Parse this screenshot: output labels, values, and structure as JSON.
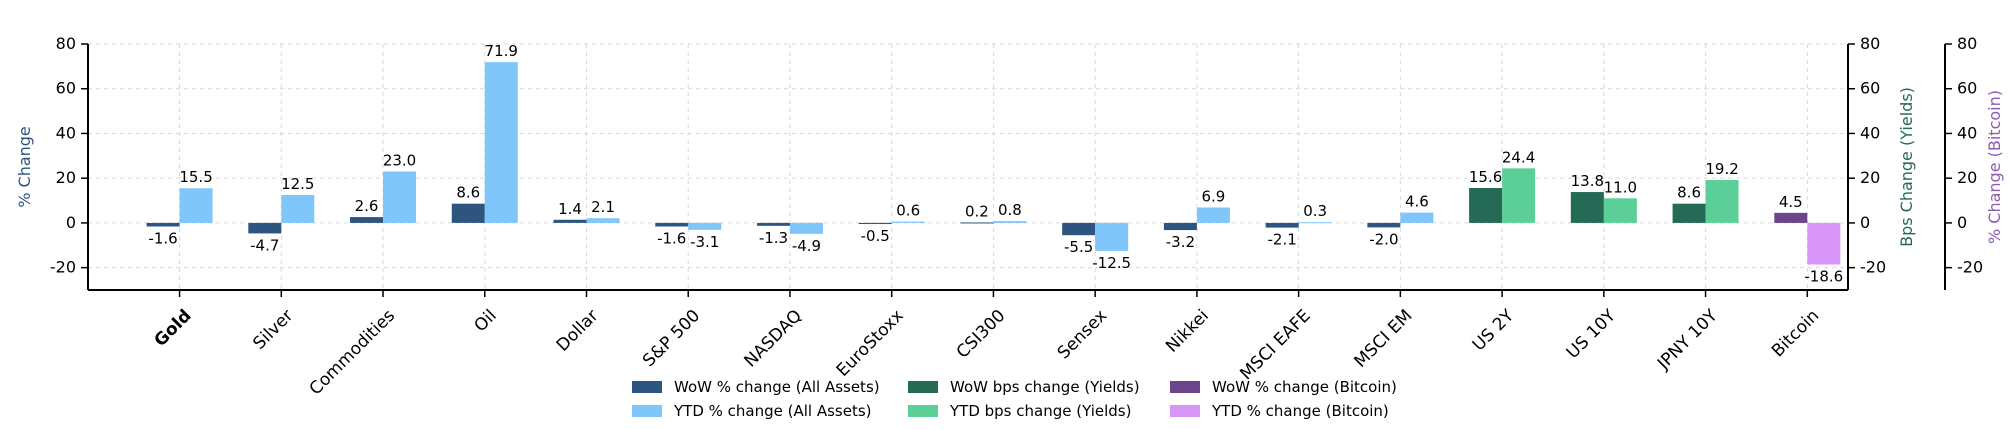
{
  "chart_data": {
    "type": "bar",
    "categories": [
      "Gold",
      "Silver",
      "Commodities",
      "Oil",
      "Dollar",
      "S&P 500",
      "NASDAQ",
      "EuroStoxx",
      "CSI300",
      "Sensex",
      "Nikkei",
      "MSCI EAFE",
      "MSCI EM",
      "US 2Y",
      "US 10Y",
      "JPNY 10Y",
      "Bitcoin"
    ],
    "highlight_category": "Gold",
    "series": [
      {
        "name": "WoW % change (All Assets)",
        "color": "#2e5580",
        "slot": 0,
        "values": [
          -1.6,
          -4.7,
          2.6,
          8.6,
          1.4,
          -1.6,
          -1.3,
          -0.5,
          0.2,
          -5.5,
          -3.2,
          -2.1,
          -2.0,
          null,
          null,
          null,
          null
        ],
        "labels": [
          "-1.6",
          "-4.7",
          "2.6",
          "8.6",
          "1.4",
          "-1.6",
          "-1.3",
          "-0.5",
          "0.2",
          "-5.5",
          "-3.2",
          "-2.1",
          "-2.0",
          null,
          null,
          null,
          null
        ]
      },
      {
        "name": "YTD % change (All Assets)",
        "color": "#7fc6fa",
        "slot": 1,
        "values": [
          15.5,
          12.5,
          23.0,
          71.9,
          2.1,
          -3.1,
          -4.9,
          0.6,
          0.8,
          -12.5,
          6.9,
          0.3,
          4.6,
          null,
          null,
          null,
          null
        ],
        "labels": [
          "15.5",
          "12.5",
          "23.0",
          "71.9",
          "2.1",
          "-3.1",
          "-4.9",
          "0.6",
          "0.8",
          "-12.5",
          "6.9",
          "0.3",
          "4.6",
          null,
          null,
          null,
          null
        ]
      },
      {
        "name": "WoW bps change (Yields)",
        "color": "#246a55",
        "slot": 0,
        "values": [
          null,
          null,
          null,
          null,
          null,
          null,
          null,
          null,
          null,
          null,
          null,
          null,
          null,
          15.6,
          13.8,
          8.6,
          null
        ],
        "labels": [
          null,
          null,
          null,
          null,
          null,
          null,
          null,
          null,
          null,
          null,
          null,
          null,
          null,
          "15.6",
          "13.8",
          "8.6",
          null
        ]
      },
      {
        "name": "YTD bps change (Yields)",
        "color": "#5ccf98",
        "slot": 1,
        "values": [
          null,
          null,
          null,
          null,
          null,
          null,
          null,
          null,
          null,
          null,
          null,
          null,
          null,
          24.4,
          11.0,
          19.2,
          null
        ],
        "labels": [
          null,
          null,
          null,
          null,
          null,
          null,
          null,
          null,
          null,
          null,
          null,
          null,
          null,
          "24.4",
          "11.0",
          "19.2",
          null
        ]
      },
      {
        "name": "WoW % change (Bitcoin)",
        "color": "#6b4489",
        "slot": 0,
        "values": [
          null,
          null,
          null,
          null,
          null,
          null,
          null,
          null,
          null,
          null,
          null,
          null,
          null,
          null,
          null,
          null,
          4.5
        ],
        "labels": [
          null,
          null,
          null,
          null,
          null,
          null,
          null,
          null,
          null,
          null,
          null,
          null,
          null,
          null,
          null,
          null,
          "4.5"
        ]
      },
      {
        "name": "YTD % change (Bitcoin)",
        "color": "#d795f7",
        "slot": 1,
        "values": [
          null,
          null,
          null,
          null,
          null,
          null,
          null,
          null,
          null,
          null,
          null,
          null,
          null,
          null,
          null,
          null,
          -18.6
        ],
        "labels": [
          null,
          null,
          null,
          null,
          null,
          null,
          null,
          null,
          null,
          null,
          null,
          null,
          null,
          null,
          null,
          null,
          "-18.6"
        ]
      }
    ],
    "ylim": [
      -30,
      80
    ],
    "yticks": [
      -20,
      0,
      20,
      40,
      60,
      80
    ],
    "ylabel_left": "% Change",
    "ylabel_right_1": "Bps Change (Yields)",
    "ylabel_right_2": "% Change (Bitcoin)",
    "colors": {
      "left_axis_label": "#2e5580",
      "right_axis_1_label": "#246a55",
      "right_axis_2_label": "#8e5bb0",
      "highlight_tick": "#c8a23a"
    },
    "grid": true,
    "legend_position": "bottom-center"
  }
}
